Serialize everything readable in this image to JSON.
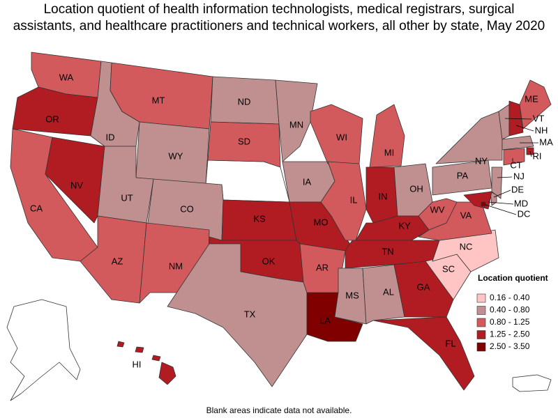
{
  "title_lines": [
    "Location quotient of health information technologists, medical registrars, surgical",
    "assistants, and healthcare practitioners and technical workers, all other by state, May 2020"
  ],
  "footnote": "Blank areas indicate data not available.",
  "legend": {
    "title": "Location quotient",
    "items": [
      {
        "label": "0.16 - 0.40",
        "color": "#ffc4c4"
      },
      {
        "label": "0.40 - 0.80",
        "color": "#c09090"
      },
      {
        "label": "0.80 - 1.25",
        "color": "#d35a5c"
      },
      {
        "label": "1.25 - 2.50",
        "color": "#b01c22"
      },
      {
        "label": "2.50 - 3.50",
        "color": "#800000"
      }
    ]
  },
  "states": [
    {
      "label": "WA",
      "bin": 2
    },
    {
      "label": "OR",
      "bin": 3
    },
    {
      "label": "CA",
      "bin": 2
    },
    {
      "label": "NV",
      "bin": 3
    },
    {
      "label": "ID",
      "bin": 1
    },
    {
      "label": "MT",
      "bin": 2
    },
    {
      "label": "WY",
      "bin": 1
    },
    {
      "label": "UT",
      "bin": 1
    },
    {
      "label": "CO",
      "bin": 1
    },
    {
      "label": "AZ",
      "bin": 2
    },
    {
      "label": "NM",
      "bin": 2
    },
    {
      "label": "ND",
      "bin": 1
    },
    {
      "label": "SD",
      "bin": 2
    },
    {
      "label": "KS",
      "bin": 3
    },
    {
      "label": "OK",
      "bin": 3
    },
    {
      "label": "TX",
      "bin": 1
    },
    {
      "label": "MN",
      "bin": 1
    },
    {
      "label": "IA",
      "bin": 1
    },
    {
      "label": "MO",
      "bin": 3
    },
    {
      "label": "AR",
      "bin": 2
    },
    {
      "label": "LA",
      "bin": 4
    },
    {
      "label": "WI",
      "bin": 2
    },
    {
      "label": "IL",
      "bin": 2
    },
    {
      "label": "MI",
      "bin": 2
    },
    {
      "label": "IN",
      "bin": 3
    },
    {
      "label": "OH",
      "bin": 1
    },
    {
      "label": "KY",
      "bin": 3
    },
    {
      "label": "TN",
      "bin": 3
    },
    {
      "label": "MS",
      "bin": 1
    },
    {
      "label": "AL",
      "bin": 1
    },
    {
      "label": "GA",
      "bin": 3
    },
    {
      "label": "FL",
      "bin": 3
    },
    {
      "label": "SC",
      "bin": 0
    },
    {
      "label": "NC",
      "bin": 0
    },
    {
      "label": "VA",
      "bin": 2
    },
    {
      "label": "WV",
      "bin": 2
    },
    {
      "label": "PA",
      "bin": 1
    },
    {
      "label": "NY",
      "bin": 1
    },
    {
      "label": "VT",
      "bin": 1
    },
    {
      "label": "NH",
      "bin": 3
    },
    {
      "label": "ME",
      "bin": 2
    },
    {
      "label": "MA",
      "bin": 1
    },
    {
      "label": "RI",
      "bin": 3
    },
    {
      "label": "CT",
      "bin": 2
    },
    {
      "label": "NJ",
      "bin": 1
    },
    {
      "label": "DE",
      "bin": 1
    },
    {
      "label": "MD",
      "bin": 3
    },
    {
      "label": "DC",
      "bin": 4
    },
    {
      "label": "HI",
      "bin": 3
    }
  ]
}
